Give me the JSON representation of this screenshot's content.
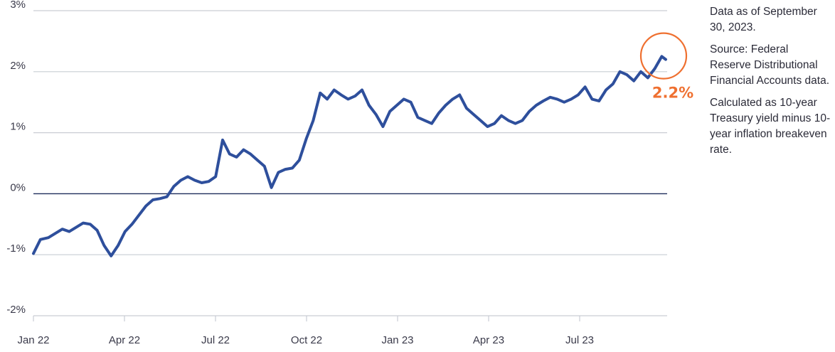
{
  "chart_data": {
    "type": "line",
    "x_ticks": [
      "Jan 22",
      "Apr 22",
      "Jul 22",
      "Oct 22",
      "Jan 23",
      "Apr 23",
      "Jul 23"
    ],
    "y_ticks": [
      "3%",
      "2%",
      "1%",
      "0%",
      "-1%",
      "-2%"
    ],
    "ylim": [
      -2,
      3
    ],
    "x_range": [
      "2022-01-03",
      "2023-09-30"
    ],
    "grid": true,
    "series": [
      {
        "color": "#2e4f9c",
        "points": [
          [
            "2022-01-03",
            -0.98
          ],
          [
            "2022-01-10",
            -0.75
          ],
          [
            "2022-01-18",
            -0.72
          ],
          [
            "2022-01-25",
            -0.65
          ],
          [
            "2022-02-01",
            -0.58
          ],
          [
            "2022-02-08",
            -0.62
          ],
          [
            "2022-02-15",
            -0.55
          ],
          [
            "2022-02-22",
            -0.48
          ],
          [
            "2022-03-01",
            -0.5
          ],
          [
            "2022-03-08",
            -0.6
          ],
          [
            "2022-03-15",
            -0.85
          ],
          [
            "2022-03-22",
            -1.02
          ],
          [
            "2022-03-29",
            -0.85
          ],
          [
            "2022-04-05",
            -0.62
          ],
          [
            "2022-04-12",
            -0.5
          ],
          [
            "2022-04-19",
            -0.35
          ],
          [
            "2022-04-26",
            -0.2
          ],
          [
            "2022-05-03",
            -0.1
          ],
          [
            "2022-05-10",
            -0.08
          ],
          [
            "2022-05-17",
            -0.05
          ],
          [
            "2022-05-24",
            0.12
          ],
          [
            "2022-05-31",
            0.22
          ],
          [
            "2022-06-07",
            0.28
          ],
          [
            "2022-06-14",
            0.22
          ],
          [
            "2022-06-21",
            0.18
          ],
          [
            "2022-06-28",
            0.2
          ],
          [
            "2022-07-05",
            0.28
          ],
          [
            "2022-07-12",
            0.88
          ],
          [
            "2022-07-19",
            0.65
          ],
          [
            "2022-07-26",
            0.6
          ],
          [
            "2022-08-02",
            0.72
          ],
          [
            "2022-08-09",
            0.65
          ],
          [
            "2022-08-16",
            0.55
          ],
          [
            "2022-08-23",
            0.45
          ],
          [
            "2022-08-30",
            0.1
          ],
          [
            "2022-09-06",
            0.35
          ],
          [
            "2022-09-13",
            0.4
          ],
          [
            "2022-09-20",
            0.42
          ],
          [
            "2022-09-27",
            0.55
          ],
          [
            "2022-10-04",
            0.9
          ],
          [
            "2022-10-11",
            1.2
          ],
          [
            "2022-10-18",
            1.65
          ],
          [
            "2022-10-25",
            1.55
          ],
          [
            "2022-11-01",
            1.7
          ],
          [
            "2022-11-08",
            1.62
          ],
          [
            "2022-11-15",
            1.55
          ],
          [
            "2022-11-22",
            1.6
          ],
          [
            "2022-11-29",
            1.7
          ],
          [
            "2022-12-06",
            1.45
          ],
          [
            "2022-12-13",
            1.3
          ],
          [
            "2022-12-20",
            1.1
          ],
          [
            "2022-12-27",
            1.35
          ],
          [
            "2023-01-03",
            1.45
          ],
          [
            "2023-01-10",
            1.55
          ],
          [
            "2023-01-17",
            1.5
          ],
          [
            "2023-01-24",
            1.25
          ],
          [
            "2023-01-31",
            1.2
          ],
          [
            "2023-02-07",
            1.15
          ],
          [
            "2023-02-14",
            1.32
          ],
          [
            "2023-02-21",
            1.45
          ],
          [
            "2023-02-28",
            1.55
          ],
          [
            "2023-03-07",
            1.62
          ],
          [
            "2023-03-14",
            1.4
          ],
          [
            "2023-03-21",
            1.3
          ],
          [
            "2023-03-28",
            1.2
          ],
          [
            "2023-04-04",
            1.1
          ],
          [
            "2023-04-11",
            1.15
          ],
          [
            "2023-04-18",
            1.28
          ],
          [
            "2023-04-25",
            1.2
          ],
          [
            "2023-05-02",
            1.15
          ],
          [
            "2023-05-09",
            1.2
          ],
          [
            "2023-05-16",
            1.35
          ],
          [
            "2023-05-23",
            1.45
          ],
          [
            "2023-05-30",
            1.52
          ],
          [
            "2023-06-06",
            1.58
          ],
          [
            "2023-06-13",
            1.55
          ],
          [
            "2023-06-20",
            1.5
          ],
          [
            "2023-06-27",
            1.55
          ],
          [
            "2023-07-04",
            1.62
          ],
          [
            "2023-07-11",
            1.75
          ],
          [
            "2023-07-18",
            1.55
          ],
          [
            "2023-07-25",
            1.52
          ],
          [
            "2023-08-01",
            1.7
          ],
          [
            "2023-08-08",
            1.8
          ],
          [
            "2023-08-15",
            2.0
          ],
          [
            "2023-08-22",
            1.95
          ],
          [
            "2023-08-29",
            1.85
          ],
          [
            "2023-09-05",
            2.0
          ],
          [
            "2023-09-12",
            1.9
          ],
          [
            "2023-09-19",
            2.05
          ],
          [
            "2023-09-26",
            2.25
          ],
          [
            "2023-09-30",
            2.2
          ]
        ]
      }
    ],
    "annotation": {
      "text": "2.2%",
      "color": "#ef7030",
      "x": "2023-09-30",
      "y": 2.2
    }
  },
  "notes": [
    "Data as of September 30, 2023.",
    "Source: Federal Reserve Distributional Financial Accounts data.",
    "Calculated as 10-year Treasury yield minus 10-year inflation breakeven rate."
  ]
}
